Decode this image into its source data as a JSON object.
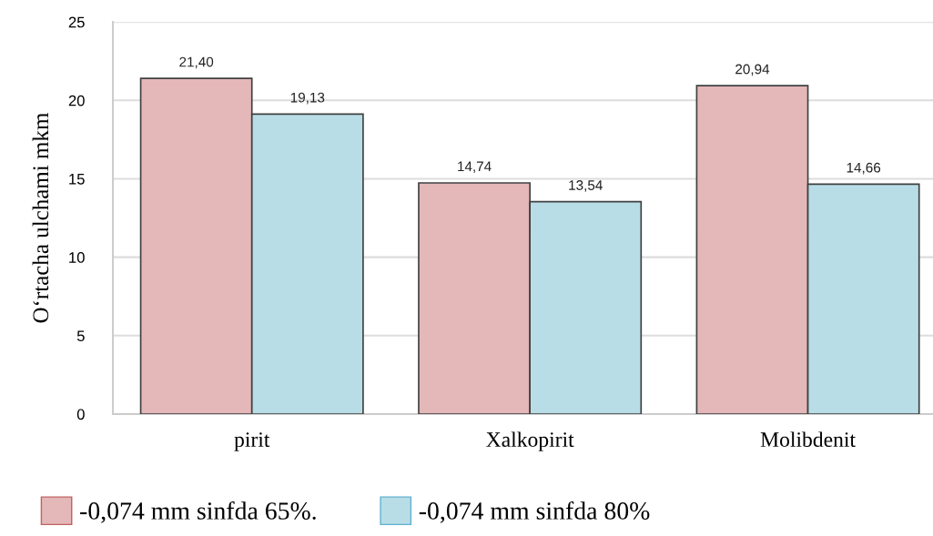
{
  "chart_data": {
    "type": "bar",
    "ylabel": "O‘rtacha ulchami mkm",
    "categories": [
      "pirit",
      "Xalkopirit",
      "Molibdenit"
    ],
    "series": [
      {
        "name": "-0,074 mm sinfda 65%.",
        "color": "#e4b7b8",
        "values": [
          21.4,
          14.74,
          20.94
        ],
        "value_labels": [
          "21,40",
          "14,74",
          "20,94"
        ]
      },
      {
        "name": "-0,074 mm sinfda 80%",
        "color": "#b8dde6",
        "values": [
          19.13,
          13.54,
          14.66
        ],
        "value_labels": [
          "19,13",
          "13,54",
          "14,66"
        ]
      }
    ],
    "ylim": [
      0,
      25
    ],
    "yticks": [
      0,
      5,
      10,
      15,
      20,
      25
    ],
    "grid": "y",
    "legend": "bottom"
  }
}
